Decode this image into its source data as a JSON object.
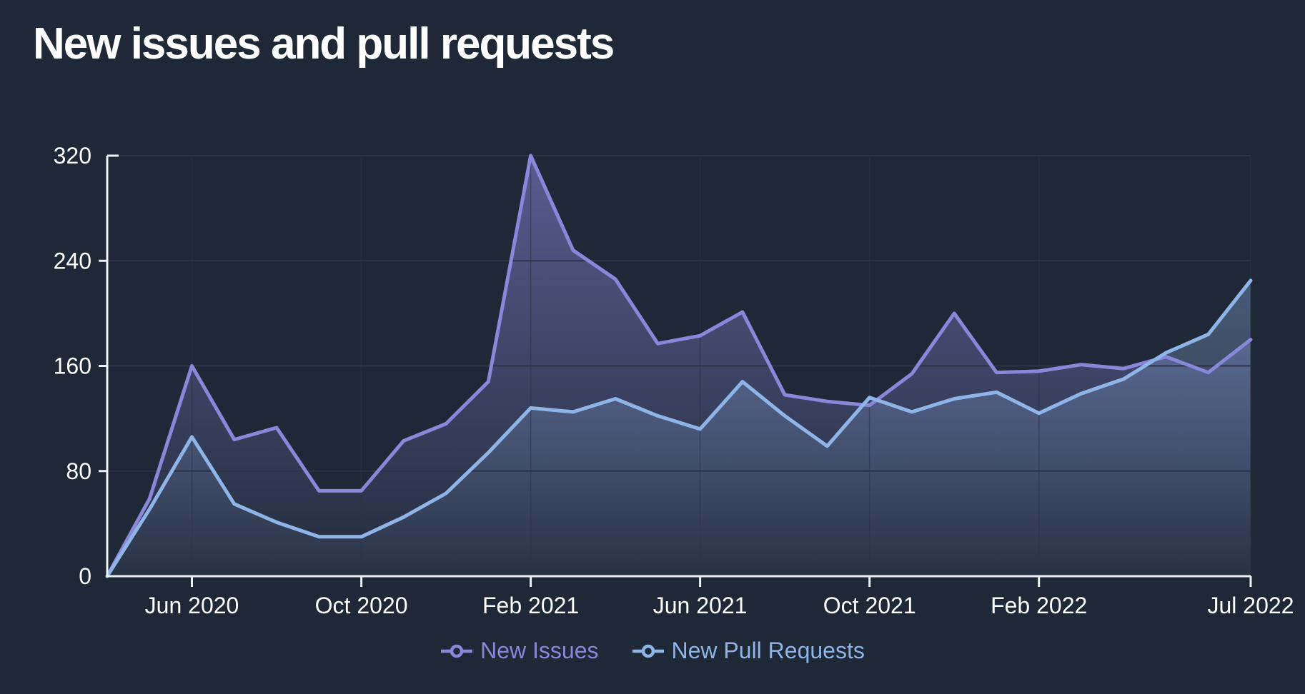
{
  "header": {
    "title": "New issues and pull requests"
  },
  "colors": {
    "background": "#1f2836",
    "axis": "#eef1f6",
    "tick_label": "#ffffff",
    "gridline": "#2b3346",
    "issues_purple": "#8987d9",
    "pull_requests_blue": "#8fb5e8"
  },
  "chart_data": {
    "type": "area",
    "title": "New issues and pull requests",
    "x": [
      "Apr 2020",
      "May 2020",
      "Jun 2020",
      "Jul 2020",
      "Aug 2020",
      "Sep 2020",
      "Oct 2020",
      "Nov 2020",
      "Dec 2020",
      "Jan 2021",
      "Feb 2021",
      "Mar 2021",
      "Apr 2021",
      "May 2021",
      "Jun 2021",
      "Jul 2021",
      "Aug 2021",
      "Sep 2021",
      "Oct 2021",
      "Nov 2021",
      "Dec 2021",
      "Jan 2022",
      "Feb 2022",
      "Mar 2022",
      "Apr 2022",
      "May 2022",
      "Jun 2022",
      "Jul 2022"
    ],
    "series": [
      {
        "name": "New Issues",
        "color": "#8987d9",
        "values": [
          0,
          59,
          160,
          104,
          113,
          65,
          65,
          103,
          116,
          148,
          320,
          248,
          226,
          177,
          183,
          201,
          138,
          133,
          130,
          154,
          200,
          155,
          156,
          161,
          158,
          167,
          155,
          180
        ]
      },
      {
        "name": "New Pull Requests",
        "color": "#8fb5e8",
        "values": [
          0,
          51,
          106,
          55,
          41,
          30,
          30,
          45,
          63,
          94,
          128,
          125,
          135,
          122,
          112,
          148,
          122,
          99,
          136,
          125,
          135,
          140,
          124,
          139,
          150,
          170,
          184,
          225
        ]
      }
    ],
    "ylim": [
      0,
      320
    ],
    "y_ticks": [
      0,
      80,
      160,
      240,
      320
    ],
    "x_ticks": [
      {
        "label": "Jun 2020",
        "index": 2
      },
      {
        "label": "Oct 2020",
        "index": 6
      },
      {
        "label": "Feb 2021",
        "index": 10
      },
      {
        "label": "Jun 2021",
        "index": 14
      },
      {
        "label": "Oct 2021",
        "index": 18
      },
      {
        "label": "Feb 2022",
        "index": 22
      },
      {
        "label": "Jul 2022",
        "index": 27
      }
    ],
    "grid": true,
    "legend_position": "bottom"
  }
}
